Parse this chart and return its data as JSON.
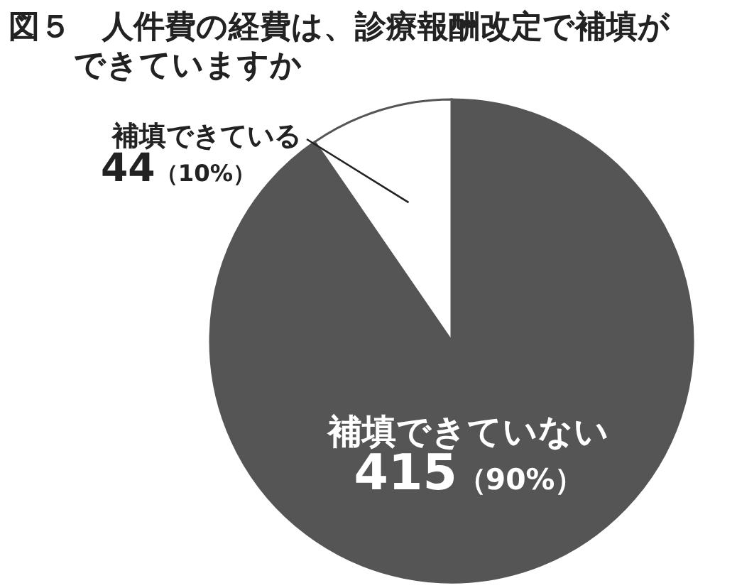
{
  "chart_data": {
    "type": "pie",
    "title": "図５　人件費の経費は、診療報酬改定で補填ができていますか",
    "categories": [
      "補填できていない",
      "補填できている"
    ],
    "values": [
      415,
      44
    ],
    "value_labels": [
      "415（90%）",
      "44（10%）"
    ],
    "colors": [
      "#555555",
      "#ffffff"
    ]
  }
}
